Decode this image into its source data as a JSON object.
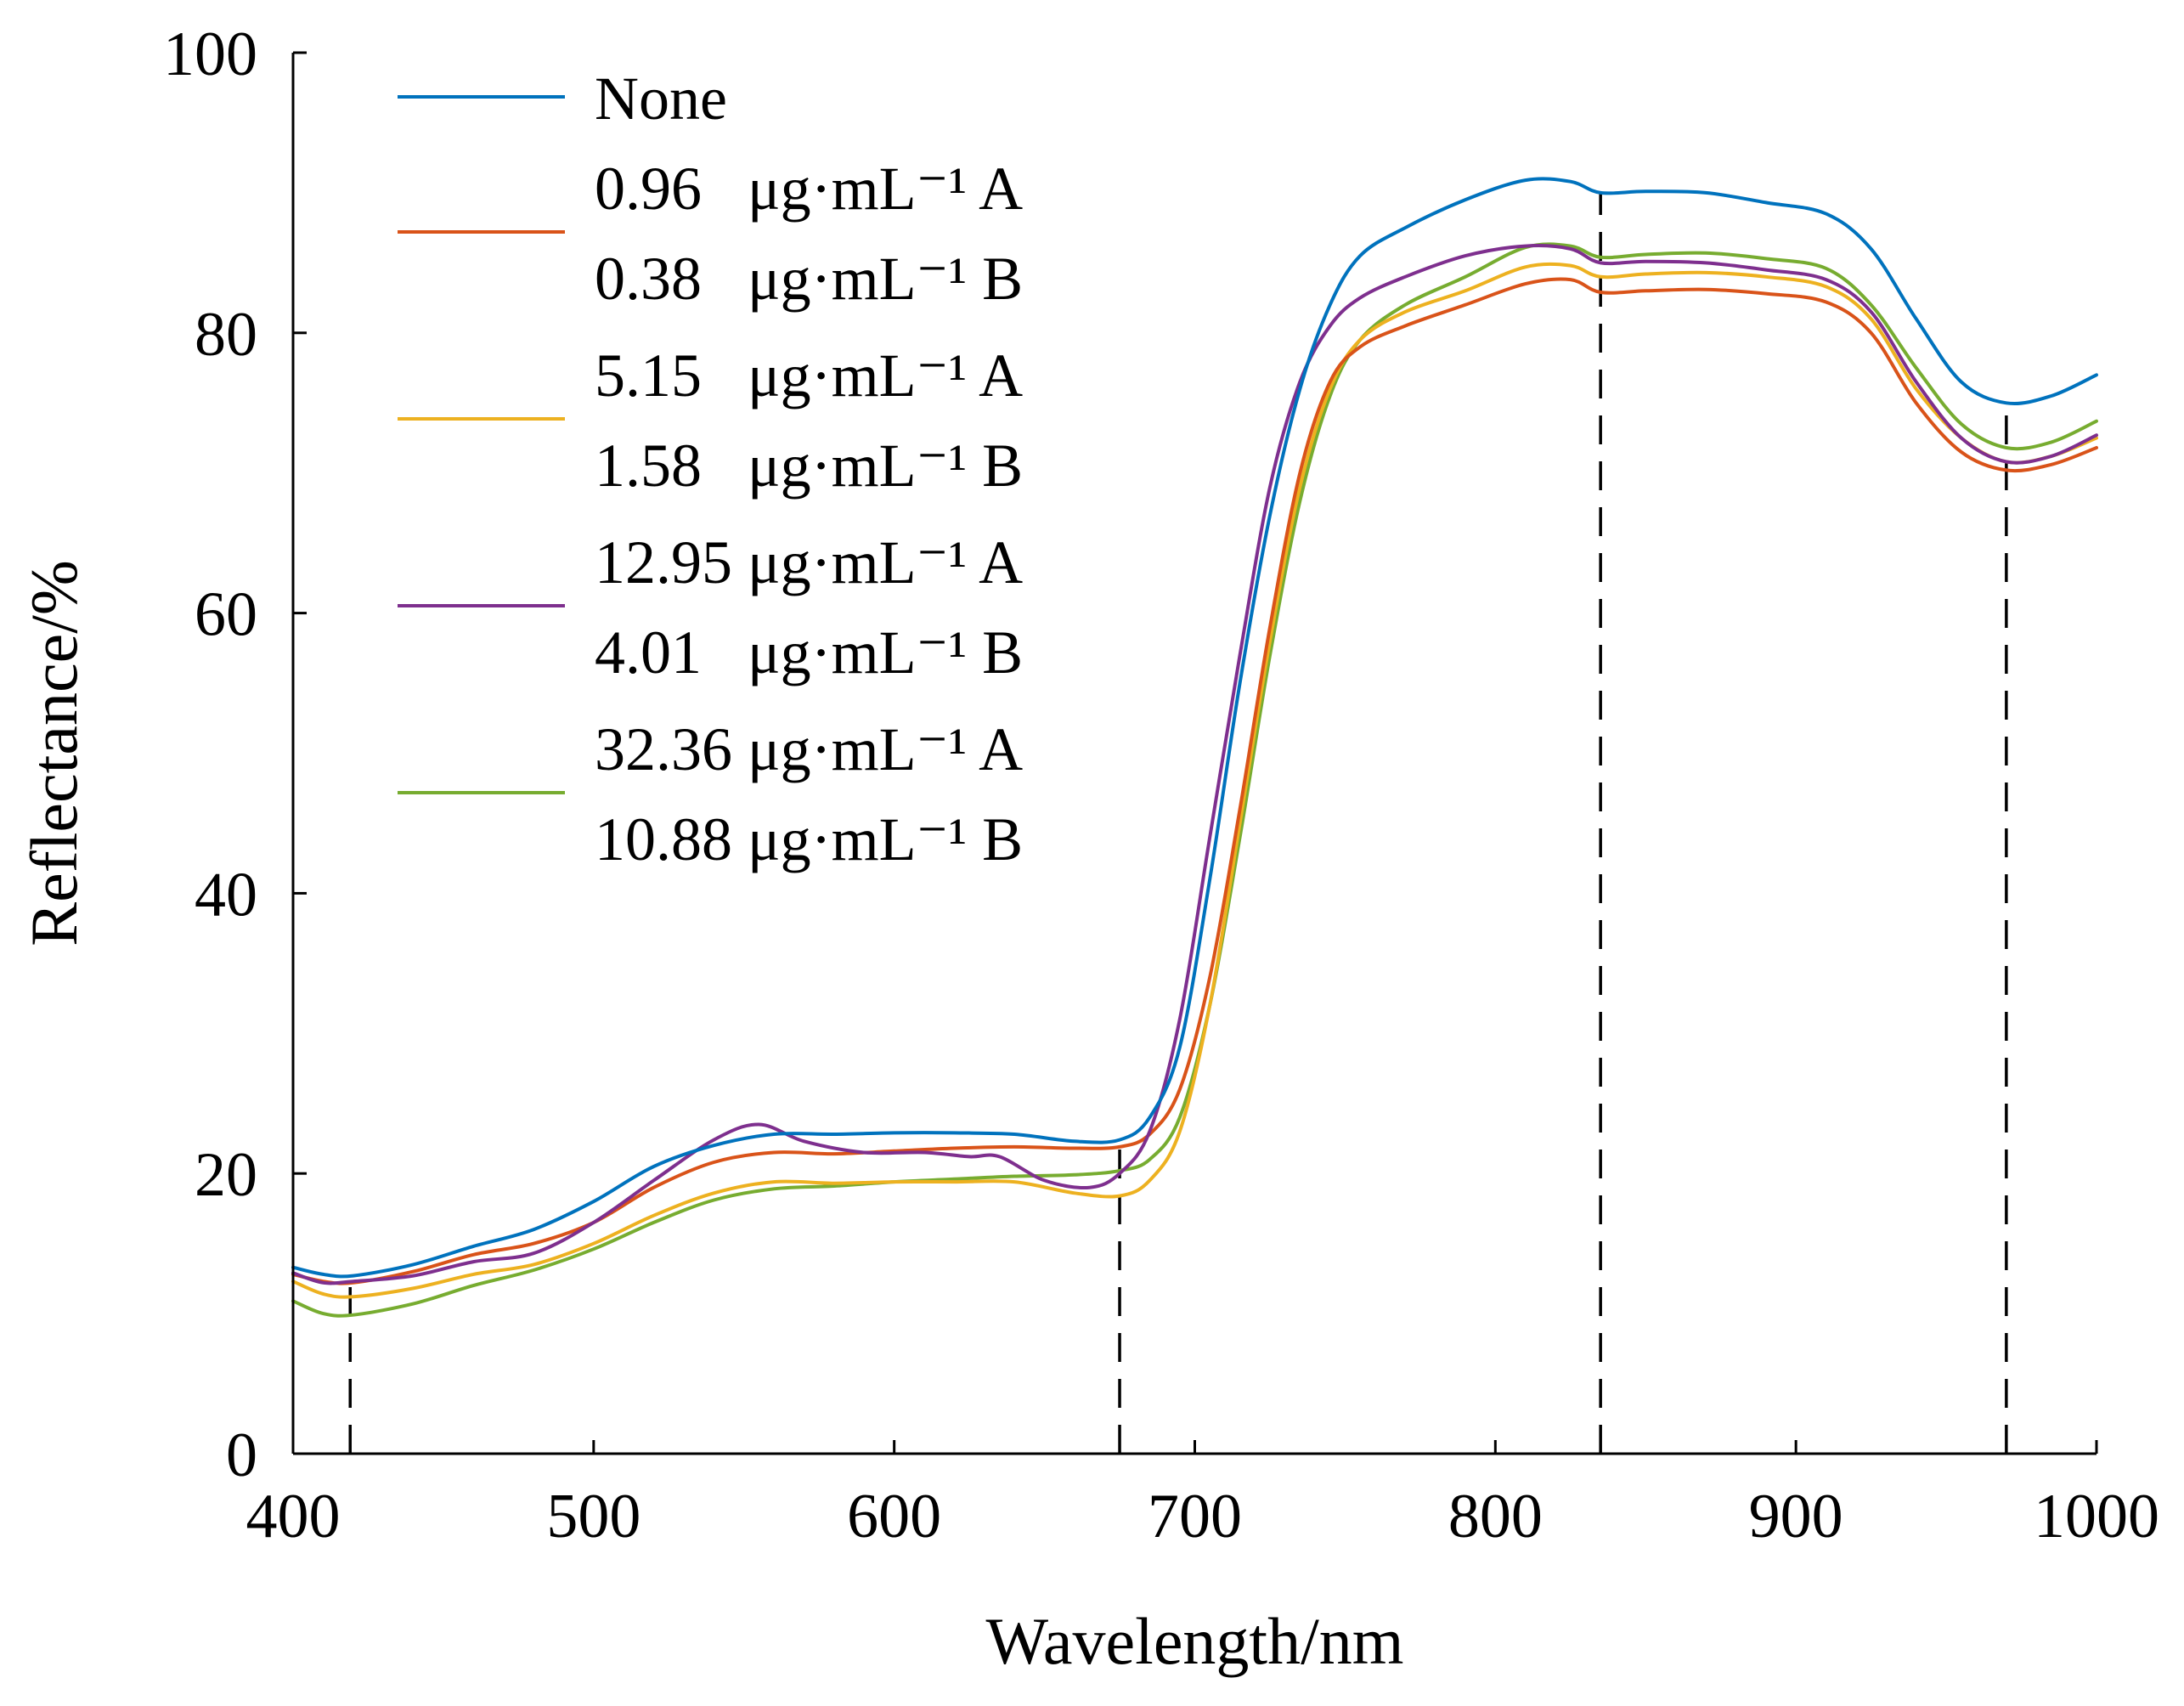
{
  "chart_data": {
    "type": "line",
    "title": "",
    "xlabel": "Wavelength/nm",
    "ylabel": "Reflectance/%",
    "xlim": [
      400,
      1000
    ],
    "ylim": [
      0,
      100
    ],
    "xticks": [
      400,
      500,
      600,
      700,
      800,
      900,
      1000
    ],
    "yticks": [
      0,
      20,
      40,
      60,
      80,
      100
    ],
    "grid": false,
    "legend_position": "top-left",
    "marker_wavelengths": [
      419,
      675,
      835,
      970
    ],
    "series": [
      {
        "name": "None",
        "legend_lines": [
          "None"
        ],
        "color": "#0072BD",
        "x": [
          400,
          410,
          420,
          440,
          460,
          480,
          500,
          520,
          540,
          560,
          580,
          600,
          620,
          640,
          660,
          675,
          685,
          695,
          705,
          715,
          725,
          735,
          745,
          755,
          770,
          790,
          810,
          825,
          835,
          850,
          870,
          890,
          910,
          925,
          940,
          955,
          970,
          985,
          1000
        ],
        "y": [
          13.3,
          12.8,
          12.7,
          13.5,
          14.8,
          16.0,
          18.0,
          20.5,
          22.0,
          22.8,
          22.8,
          22.9,
          22.9,
          22.8,
          22.3,
          22.4,
          24.0,
          29.0,
          41.0,
          55.0,
          67.0,
          76.0,
          82.0,
          85.5,
          87.5,
          89.5,
          90.9,
          90.8,
          90.0,
          90.1,
          90.0,
          89.3,
          88.5,
          86.0,
          81.0,
          76.5,
          75.0,
          75.5,
          77.0
        ]
      },
      {
        "name": "0.96 μg·mL⁻¹ A / 0.38 μg·mL⁻¹ B",
        "legend_lines": [
          "0.96   μg·mL⁻¹ A",
          "0.38   μg·mL⁻¹ B"
        ],
        "color": "#D95319",
        "x": [
          400,
          410,
          420,
          440,
          460,
          480,
          500,
          520,
          540,
          560,
          580,
          600,
          620,
          640,
          660,
          675,
          685,
          695,
          705,
          715,
          725,
          735,
          745,
          755,
          770,
          790,
          810,
          825,
          835,
          850,
          870,
          890,
          910,
          925,
          940,
          955,
          970,
          985,
          1000
        ],
        "y": [
          12.8,
          12.3,
          12.2,
          13.0,
          14.2,
          15.0,
          16.5,
          19.0,
          20.8,
          21.5,
          21.4,
          21.6,
          21.8,
          21.9,
          21.8,
          21.9,
          22.8,
          26.0,
          34.0,
          46.0,
          59.0,
          70.0,
          76.5,
          79.0,
          80.5,
          82.0,
          83.5,
          83.8,
          82.9,
          83.0,
          83.1,
          82.8,
          82.2,
          80.0,
          75.0,
          71.5,
          70.2,
          70.6,
          71.8
        ]
      },
      {
        "name": "5.15 μg·mL⁻¹ A / 1.58 μg·mL⁻¹ B",
        "legend_lines": [
          "5.15   μg·mL⁻¹ A",
          "1.58   μg·mL⁻¹ B"
        ],
        "color": "#EDB120",
        "x": [
          400,
          410,
          420,
          440,
          460,
          480,
          500,
          520,
          540,
          560,
          580,
          600,
          620,
          640,
          660,
          675,
          685,
          695,
          705,
          715,
          725,
          735,
          745,
          755,
          770,
          790,
          810,
          825,
          835,
          850,
          870,
          890,
          910,
          925,
          940,
          955,
          970,
          985,
          1000
        ],
        "y": [
          12.3,
          11.4,
          11.2,
          11.8,
          12.8,
          13.5,
          15.0,
          17.0,
          18.6,
          19.4,
          19.3,
          19.4,
          19.4,
          19.4,
          18.6,
          18.4,
          19.5,
          23.0,
          32.0,
          45.0,
          58.0,
          69.0,
          76.0,
          79.5,
          81.5,
          83.0,
          84.7,
          84.8,
          84.0,
          84.2,
          84.3,
          84.0,
          83.3,
          81.0,
          76.0,
          72.5,
          70.8,
          71.2,
          72.5
        ]
      },
      {
        "name": "12.95 μg·mL⁻¹ A / 4.01 μg·mL⁻¹ B",
        "legend_lines": [
          "12.95 μg·mL⁻¹ A",
          "4.01   μg·mL⁻¹ B"
        ],
        "color": "#7E2F8E",
        "x": [
          400,
          410,
          420,
          440,
          460,
          480,
          500,
          520,
          540,
          555,
          570,
          590,
          610,
          625,
          635,
          650,
          665,
          675,
          685,
          695,
          705,
          715,
          725,
          735,
          745,
          755,
          770,
          790,
          810,
          825,
          835,
          850,
          870,
          890,
          910,
          925,
          940,
          955,
          970,
          985,
          1000
        ],
        "y": [
          12.9,
          12.2,
          12.3,
          12.7,
          13.7,
          14.3,
          16.5,
          19.5,
          22.4,
          23.5,
          22.3,
          21.5,
          21.5,
          21.2,
          21.2,
          19.5,
          19.0,
          20.0,
          23.0,
          31.0,
          44.0,
          57.0,
          69.0,
          76.5,
          80.5,
          82.5,
          84.0,
          85.5,
          86.2,
          86.0,
          85.0,
          85.1,
          85.0,
          84.5,
          83.8,
          81.5,
          76.5,
          72.5,
          70.8,
          71.2,
          72.7
        ]
      },
      {
        "name": "32.36 μg·mL⁻¹ A / 10.88 μg·mL⁻¹ B",
        "legend_lines": [
          "32.36 μg·mL⁻¹ A",
          "10.88 μg·mL⁻¹ B"
        ],
        "color": "#77AC30",
        "x": [
          400,
          410,
          420,
          440,
          460,
          480,
          500,
          520,
          540,
          560,
          580,
          600,
          620,
          640,
          660,
          675,
          685,
          695,
          705,
          715,
          725,
          735,
          745,
          755,
          770,
          790,
          810,
          825,
          835,
          850,
          870,
          890,
          910,
          925,
          940,
          955,
          970,
          985,
          1000
        ],
        "y": [
          10.9,
          10.0,
          9.9,
          10.7,
          12.0,
          13.1,
          14.6,
          16.5,
          18.1,
          18.9,
          19.1,
          19.4,
          19.6,
          19.8,
          19.9,
          20.2,
          21.0,
          24.0,
          32.0,
          44.0,
          57.0,
          68.0,
          75.5,
          79.5,
          82.0,
          84.0,
          86.1,
          86.2,
          85.4,
          85.6,
          85.7,
          85.3,
          84.6,
          82.0,
          77.5,
          73.5,
          71.8,
          72.2,
          73.7
        ]
      }
    ]
  }
}
